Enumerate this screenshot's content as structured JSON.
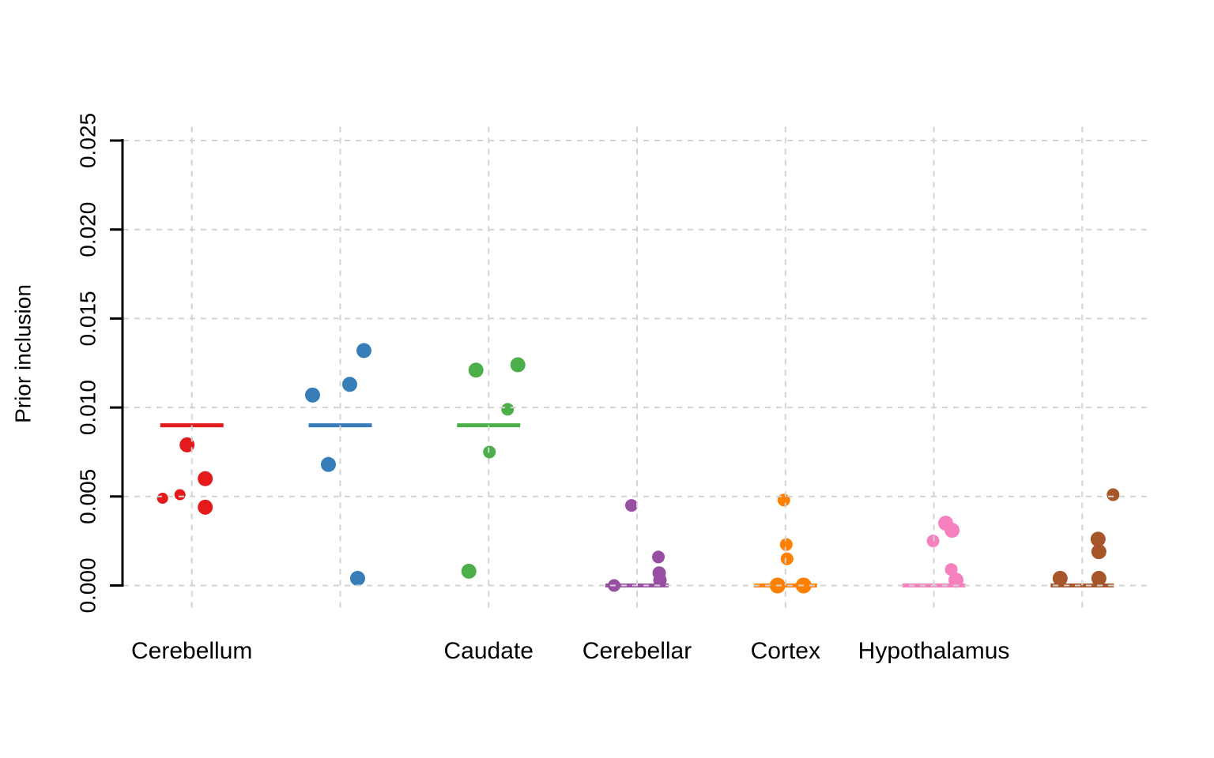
{
  "page": {
    "background": "#ffffff"
  },
  "chart_data": {
    "type": "scatter",
    "variant": "strip-jitter-plot",
    "title": "",
    "xlabel": "",
    "ylabel": "Prior inclusion",
    "ylim": [
      0,
      0.025
    ],
    "ytick_values": [
      0,
      0.005,
      0.01,
      0.015,
      0.02,
      0.025
    ],
    "ytick_labels": [
      "0.000",
      "0.005",
      "0.010",
      "0.015",
      "0.020",
      "0.025"
    ],
    "legend": "none",
    "grid": {
      "style": "dashed",
      "color": "#d3d3d3",
      "horizontal": true,
      "vertical": true,
      "drawn_over_points": true
    },
    "axis_color": "#000000",
    "groups": [
      {
        "label": "Cerebellum",
        "color": "#E41A1C",
        "mean_line": 0.009,
        "points": [
          {
            "value": 0.0049,
            "dx": -37,
            "d": 14
          },
          {
            "value": 0.0051,
            "dx": -15,
            "d": 14
          },
          {
            "value": 0.0079,
            "dx": -6,
            "d": 19
          },
          {
            "value": 0.006,
            "dx": 17,
            "d": 19
          },
          {
            "value": 0.0044,
            "dx": 17,
            "d": 19
          }
        ]
      },
      {
        "label": "",
        "color": "#377EB8",
        "mean_line": 0.009,
        "points": [
          {
            "value": 0.0107,
            "dx": -35,
            "d": 19
          },
          {
            "value": 0.0113,
            "dx": 12,
            "d": 19
          },
          {
            "value": 0.0132,
            "dx": 30,
            "d": 19
          },
          {
            "value": 0.0068,
            "dx": -15,
            "d": 19
          },
          {
            "value": 0.0004,
            "dx": 22,
            "d": 19
          }
        ]
      },
      {
        "label": "Caudate",
        "color": "#4DAF4A",
        "mean_line": 0.009,
        "points": [
          {
            "value": 0.0121,
            "dx": -16,
            "d": 19
          },
          {
            "value": 0.0124,
            "dx": 37,
            "d": 19
          },
          {
            "value": 0.0099,
            "dx": 24,
            "d": 16
          },
          {
            "value": 0.0075,
            "dx": 1,
            "d": 16
          },
          {
            "value": 0.0008,
            "dx": -25,
            "d": 19
          }
        ]
      },
      {
        "label": "Cerebellar",
        "color": "#984EA3",
        "mean_line": 0.0,
        "points": [
          {
            "value": 0.0045,
            "dx": -7,
            "d": 16
          },
          {
            "value": 0.0016,
            "dx": 27,
            "d": 16
          },
          {
            "value": 0.0007,
            "dx": 28,
            "d": 17
          },
          {
            "value": 0.0003,
            "dx": 29,
            "d": 17
          },
          {
            "value": 0.0,
            "dx": -29,
            "d": 16
          }
        ]
      },
      {
        "label": "Cortex",
        "color": "#FF7F00",
        "mean_line": 0.0,
        "points": [
          {
            "value": 0.0048,
            "dx": -2,
            "d": 16
          },
          {
            "value": 0.0023,
            "dx": 1,
            "d": 16
          },
          {
            "value": 0.0015,
            "dx": 2,
            "d": 16
          },
          {
            "value": 0.0,
            "dx": -10,
            "d": 20
          },
          {
            "value": 0.0,
            "dx": 23,
            "d": 20
          }
        ]
      },
      {
        "label": "Hypothalamus",
        "color": "#F781BF",
        "mean_line": 0.0,
        "points": [
          {
            "value": 0.0035,
            "dx": 15,
            "d": 19
          },
          {
            "value": 0.0031,
            "dx": 23,
            "d": 19
          },
          {
            "value": 0.0025,
            "dx": -1,
            "d": 16
          },
          {
            "value": 0.0009,
            "dx": 22,
            "d": 16
          },
          {
            "value": 0.0003,
            "dx": 28,
            "d": 19
          }
        ]
      },
      {
        "label": "",
        "color": "#A65628",
        "mean_line": 0.0,
        "points": [
          {
            "value": 0.0051,
            "dx": 39,
            "d": 16
          },
          {
            "value": 0.0026,
            "dx": 20,
            "d": 19
          },
          {
            "value": 0.0019,
            "dx": 21,
            "d": 19
          },
          {
            "value": 0.0004,
            "dx": -28,
            "d": 19
          },
          {
            "value": 0.0004,
            "dx": 21,
            "d": 19
          }
        ]
      }
    ]
  }
}
